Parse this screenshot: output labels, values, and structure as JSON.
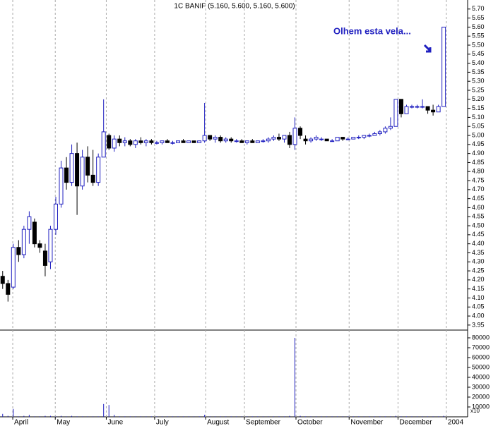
{
  "chart_data": {
    "type": "candlestick",
    "title": "1C BANIF (5.160, 5.600, 5.160, 5.600)",
    "annotation": "Olhem esta vela...",
    "volume_unit": "x10",
    "up_color": "#2020c0",
    "down_color": "#000000",
    "volume_color": "#2020c0",
    "grid": true,
    "xlim": [
      -0.5,
      87.5
    ],
    "xticks": [
      {
        "value": 1.9,
        "label": "April"
      },
      {
        "value": 9.9,
        "label": "May"
      },
      {
        "value": 19.5,
        "label": "June"
      },
      {
        "value": 28.6,
        "label": "July"
      },
      {
        "value": 38.2,
        "label": "August"
      },
      {
        "value": 45.5,
        "label": "September"
      },
      {
        "value": 55.2,
        "label": "October"
      },
      {
        "value": 65.2,
        "label": "November"
      },
      {
        "value": 74.4,
        "label": "December"
      },
      {
        "value": 83.5,
        "label": "2004"
      }
    ],
    "ylim": [
      3.93,
      5.75
    ],
    "yticks": [
      {
        "value": 5.7,
        "label": "5.70"
      },
      5.65,
      {
        "value": 5.6,
        "label": "5.60"
      },
      5.55,
      {
        "value": 5.5,
        "label": "5.50"
      },
      5.45,
      {
        "value": 5.4,
        "label": "5.40"
      },
      5.35,
      {
        "value": 5.3,
        "label": "5.30"
      },
      5.25,
      {
        "value": 5.2,
        "label": "5.20"
      },
      5.15,
      {
        "value": 5.1,
        "label": "5.10"
      },
      5.05,
      {
        "value": 5,
        "label": "5.00"
      },
      4.95,
      {
        "value": 4.9,
        "label": "4.90"
      },
      4.85,
      {
        "value": 4.8,
        "label": "4.80"
      },
      4.75,
      {
        "value": 4.7,
        "label": "4.70"
      },
      4.65,
      {
        "value": 4.6,
        "label": "4.60"
      },
      4.55,
      {
        "value": 4.5,
        "label": "4.50"
      },
      4.45,
      {
        "value": 4.4,
        "label": "4.40"
      },
      4.35,
      {
        "value": 4.3,
        "label": "4.30"
      },
      4.25,
      {
        "value": 4.2,
        "label": "4.20"
      },
      4.15,
      {
        "value": 4.1,
        "label": "4.10"
      },
      4.05,
      {
        "value": 4,
        "label": "4.00"
      },
      3.95
    ],
    "y2lim": [
      0,
      86000
    ],
    "y2ticks": [
      80000,
      70000,
      60000,
      50000,
      40000,
      30000,
      20000,
      10000
    ],
    "open": [
      4.22,
      4.18,
      4.16,
      4.38,
      4.34,
      4.48,
      4.52,
      4.4,
      4.36,
      4.3,
      4.48,
      4.62,
      4.82,
      4.74,
      4.9,
      4.72,
      4.88,
      4.78,
      4.74,
      4.88,
      5.0,
      4.93,
      4.98,
      4.96,
      4.97,
      4.95,
      4.97,
      4.96,
      4.97,
      4.96,
      4.96,
      4.97,
      4.96,
      4.96,
      4.97,
      4.96,
      4.97,
      4.96,
      4.97,
      5.0,
      4.98,
      4.99,
      4.97,
      4.98,
      4.97,
      4.97,
      4.96,
      4.97,
      4.96,
      4.97,
      4.97,
      4.98,
      4.99,
      4.98,
      5.0,
      4.95,
      5.04,
      4.98,
      4.97,
      4.98,
      4.98,
      4.98,
      4.97,
      4.97,
      4.99,
      4.98,
      4.98,
      4.99,
      4.99,
      5.0,
      5.0,
      5.01,
      5.02,
      5.04,
      5.05,
      5.2,
      5.12,
      5.16,
      5.16,
      5.16,
      5.16,
      5.14,
      5.13,
      5.16
    ],
    "high": [
      4.25,
      4.2,
      4.4,
      4.42,
      4.5,
      4.58,
      4.54,
      4.42,
      4.4,
      4.5,
      4.66,
      4.86,
      4.88,
      4.95,
      4.96,
      4.92,
      4.94,
      4.92,
      4.9,
      5.2,
      5.01,
      5.0,
      5.0,
      4.99,
      4.98,
      4.98,
      4.99,
      4.98,
      4.98,
      4.97,
      4.97,
      4.98,
      4.97,
      4.97,
      4.98,
      4.97,
      4.97,
      4.97,
      5.18,
      5.0,
      5.0,
      5.0,
      4.99,
      4.99,
      4.98,
      4.98,
      4.97,
      4.98,
      4.97,
      4.98,
      4.99,
      5.0,
      5.01,
      5.0,
      5.02,
      5.1,
      5.05,
      5.0,
      4.99,
      5.0,
      4.99,
      4.98,
      4.98,
      4.99,
      4.99,
      4.99,
      4.99,
      5.0,
      5.0,
      5.01,
      5.02,
      5.03,
      5.05,
      5.1,
      5.2,
      5.2,
      5.17,
      5.17,
      5.17,
      5.2,
      5.16,
      5.17,
      5.17,
      5.6
    ],
    "low": [
      4.15,
      4.08,
      4.15,
      4.3,
      4.32,
      4.4,
      4.38,
      4.35,
      4.22,
      4.26,
      4.45,
      4.6,
      4.7,
      4.72,
      4.56,
      4.7,
      4.74,
      4.72,
      4.72,
      4.88,
      4.92,
      4.91,
      4.94,
      4.94,
      4.94,
      4.93,
      4.95,
      4.94,
      4.95,
      4.95,
      4.95,
      4.96,
      4.95,
      4.96,
      4.96,
      4.96,
      4.96,
      4.96,
      4.96,
      4.97,
      4.96,
      4.96,
      4.96,
      4.96,
      4.96,
      4.96,
      4.95,
      4.96,
      4.96,
      4.96,
      4.96,
      4.97,
      4.97,
      4.96,
      4.93,
      4.92,
      4.98,
      4.95,
      4.96,
      4.97,
      4.97,
      4.97,
      4.97,
      4.97,
      4.97,
      4.98,
      4.98,
      4.98,
      4.98,
      4.99,
      5.0,
      5.0,
      5.01,
      5.03,
      5.05,
      5.1,
      5.12,
      5.15,
      5.15,
      5.15,
      5.12,
      5.11,
      5.13,
      5.16
    ],
    "close": [
      4.18,
      4.12,
      4.38,
      4.34,
      4.48,
      4.55,
      4.4,
      4.38,
      4.28,
      4.48,
      4.62,
      4.82,
      4.74,
      4.9,
      4.72,
      4.88,
      4.78,
      4.74,
      4.88,
      5.02,
      4.93,
      4.98,
      4.96,
      4.97,
      4.95,
      4.97,
      4.96,
      4.97,
      4.96,
      4.96,
      4.97,
      4.96,
      4.96,
      4.97,
      4.96,
      4.97,
      4.96,
      4.97,
      5.0,
      4.98,
      4.99,
      4.97,
      4.98,
      4.97,
      4.97,
      4.96,
      4.97,
      4.96,
      4.97,
      4.97,
      4.98,
      4.99,
      4.98,
      5.0,
      4.95,
      5.04,
      5.0,
      4.97,
      4.98,
      4.99,
      4.98,
      4.97,
      4.97,
      4.99,
      4.98,
      4.98,
      4.99,
      4.99,
      5.0,
      5.0,
      5.01,
      5.02,
      5.04,
      5.05,
      5.2,
      5.12,
      5.16,
      5.16,
      5.16,
      5.16,
      5.14,
      5.13,
      5.16,
      5.6
    ],
    "volume": [
      3000,
      1000,
      8000,
      500,
      1000,
      2000,
      500,
      500,
      1000,
      1000,
      500,
      1000,
      500,
      1000,
      500,
      500,
      500,
      500,
      500,
      13000,
      12000,
      2000,
      500,
      500,
      500,
      500,
      500,
      500,
      500,
      500,
      500,
      500,
      500,
      500,
      500,
      500,
      500,
      500,
      2000,
      500,
      500,
      500,
      500,
      500,
      500,
      500,
      500,
      500,
      500,
      500,
      500,
      500,
      500,
      500,
      1000,
      80000,
      1000,
      500,
      500,
      500,
      500,
      500,
      500,
      500,
      500,
      500,
      500,
      500,
      500,
      500,
      500,
      500,
      500,
      500,
      1000,
      500,
      500,
      500,
      500,
      500,
      500,
      500,
      500,
      1000
    ]
  }
}
